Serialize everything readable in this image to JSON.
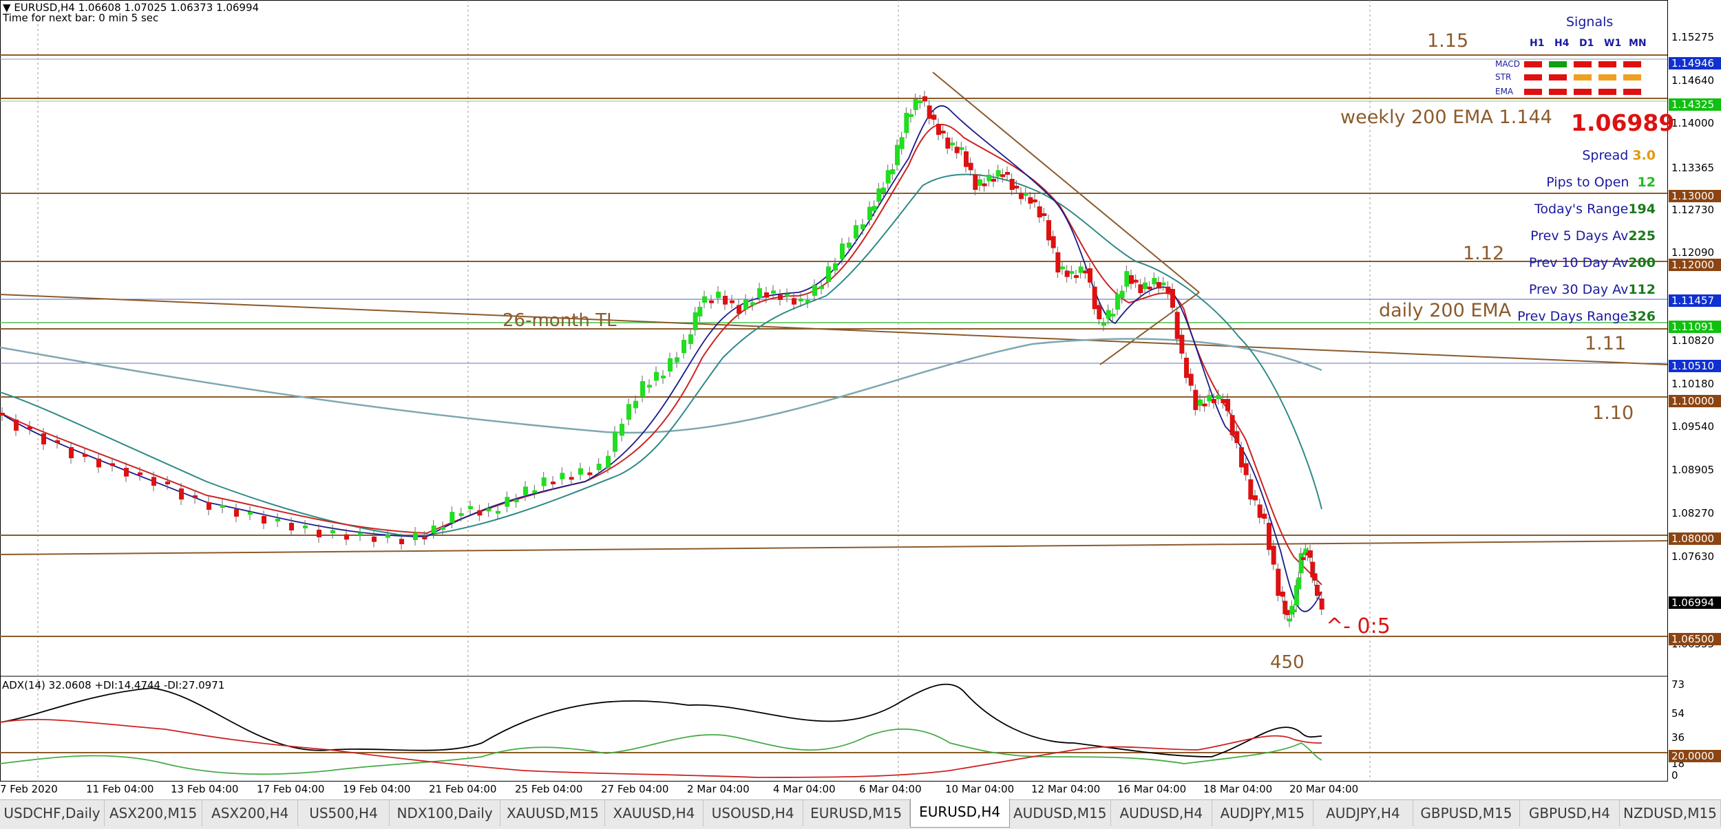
{
  "header": {
    "symbol_line": "EURUSD,H4  1.06608 1.07025 1.06373 1.06994",
    "timer": "Time for next bar: 0 min 5 sec",
    "arrow_glyph": "▼"
  },
  "signals": {
    "title": "Signals",
    "timeframes": [
      "H1",
      "H4",
      "D1",
      "W1",
      "MN"
    ],
    "rows": [
      {
        "label": "MACD",
        "colors": [
          "#e01010",
          "#10a010",
          "#e01010",
          "#e01010",
          "#e01010"
        ]
      },
      {
        "label": "STR",
        "colors": [
          "#e01010",
          "#e01010",
          "#f0a020",
          "#f0a020",
          "#f0a020"
        ]
      },
      {
        "label": "EMA",
        "colors": [
          "#e01010",
          "#e01010",
          "#e01010",
          "#e01010",
          "#e01010"
        ]
      }
    ]
  },
  "info_panel": {
    "price": "1.06989",
    "spread_label": "Spread",
    "spread_value": "3.0",
    "pips_label": "Pips to Open",
    "pips_value": "12",
    "today_label": "Today's Range",
    "today_value": "194",
    "prev5_label": "Prev 5 Days Av",
    "prev5_value": "225",
    "prev10_label": "Prev 10 Day Av",
    "prev10_value": "200",
    "prev30_label": "Prev 30 Day Av",
    "prev30_value": "112",
    "prevdays_label": "Prev Days Range",
    "prevdays_value": "326"
  },
  "annotations": {
    "level_115": "1.15",
    "weekly_ema": "weekly 200 EMA 1.144",
    "level_112": "1.12",
    "daily_ema": "daily 200 EMA",
    "level_111": "1.11",
    "level_110": "1.10",
    "trendline": "26-month TL",
    "target": "^- 0:5",
    "pips_450": "450"
  },
  "price_axis": {
    "ticks": [
      "1.15275",
      "1.14640",
      "1.14000",
      "1.13365",
      "1.12730",
      "1.12090",
      "1.10820",
      "1.10180",
      "1.09540",
      "1.08905",
      "1.08270",
      "1.07630",
      "1.06355"
    ],
    "highlight_labels": [
      {
        "text": "1.14946",
        "bg": "#1030d0"
      },
      {
        "text": "1.14325",
        "bg": "#10c010"
      },
      {
        "text": "1.13000",
        "bg": "#8b4513"
      },
      {
        "text": "1.12000",
        "bg": "#8b4513"
      },
      {
        "text": "1.11457",
        "bg": "#1030d0"
      },
      {
        "text": "1.11091",
        "bg": "#10c010"
      },
      {
        "text": "1.10510",
        "bg": "#1030d0"
      },
      {
        "text": "1.10000",
        "bg": "#8b4513"
      },
      {
        "text": "1.08000",
        "bg": "#8b4513"
      },
      {
        "text": "1.06994",
        "bg": "#000000"
      },
      {
        "text": "1.06500",
        "bg": "#8b4513"
      }
    ]
  },
  "indicator": {
    "label": "ADX(14) 32.0608 +DI:14.4744 -DI:27.0971",
    "ticks": [
      "73",
      "54",
      "36",
      "18",
      "0"
    ],
    "level_label": "20.0000"
  },
  "time_axis": {
    "labels": [
      "7 Feb 2020",
      "11 Feb 04:00",
      "13 Feb 04:00",
      "17 Feb 04:00",
      "19 Feb 04:00",
      "21 Feb 04:00",
      "25 Feb 04:00",
      "27 Feb 04:00",
      "2 Mar 04:00",
      "4 Mar 04:00",
      "6 Mar 04:00",
      "10 Mar 04:00",
      "12 Mar 04:00",
      "16 Mar 04:00",
      "18 Mar 04:00",
      "20 Mar 04:00"
    ]
  },
  "tabs": [
    {
      "label": "USDCHF,Daily"
    },
    {
      "label": "ASX200,M15"
    },
    {
      "label": "ASX200,H4"
    },
    {
      "label": "US500,H4"
    },
    {
      "label": "NDX100,Daily"
    },
    {
      "label": "XAUUSD,M15"
    },
    {
      "label": "XAUUSD,H4"
    },
    {
      "label": "USOUSD,H4"
    },
    {
      "label": "EURUSD,M15"
    },
    {
      "label": "EURUSD,H4",
      "active": true
    },
    {
      "label": "AUDUSD,M15"
    },
    {
      "label": "AUDUSD,H4"
    },
    {
      "label": "AUDJPY,M15"
    },
    {
      "label": "AUDJPY,H4"
    },
    {
      "label": "GBPUSD,M15"
    },
    {
      "label": "GBPUSD,H4"
    },
    {
      "label": "NZDUSD,M15"
    }
  ],
  "colors": {
    "bull": "#22dd22",
    "bear": "#dd1111",
    "fast_ma": "#1a1a8a",
    "mid_ma": "#cc2222",
    "slow_ma": "#2f8a86",
    "ema200": "#7fa7b0",
    "level": "#8b5a2b"
  }
}
